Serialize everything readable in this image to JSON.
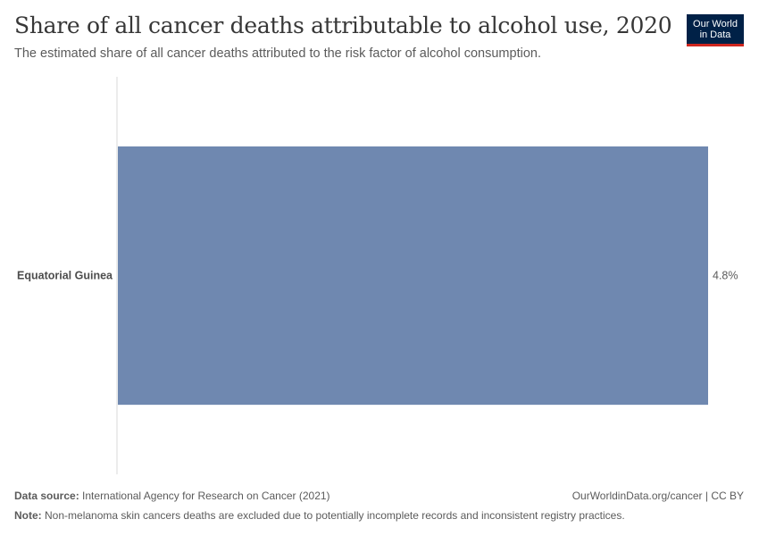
{
  "header": {
    "title": "Share of all cancer deaths attributable to alcohol use, 2020",
    "subtitle": "The estimated share of all cancer deaths attributed to the risk factor of alcohol consumption.",
    "logo_line1": "Our World",
    "logo_line2": "in Data"
  },
  "chart_data": {
    "type": "bar",
    "orientation": "horizontal",
    "categories": [
      "Equatorial Guinea"
    ],
    "values": [
      4.8
    ],
    "value_labels": [
      "4.8%"
    ],
    "unit": "%",
    "xlim": [
      0,
      4.8
    ],
    "bar_color": "#6f88b0",
    "grid": false
  },
  "footer": {
    "source_label": "Data source:",
    "source_text": "International Agency for Research on Cancer (2021)",
    "url_text": "OurWorldinData.org/cancer | CC BY",
    "note_label": "Note:",
    "note_text": "Non-melanoma skin cancers deaths are excluded due to potentially incomplete records and inconsistent registry practices."
  }
}
